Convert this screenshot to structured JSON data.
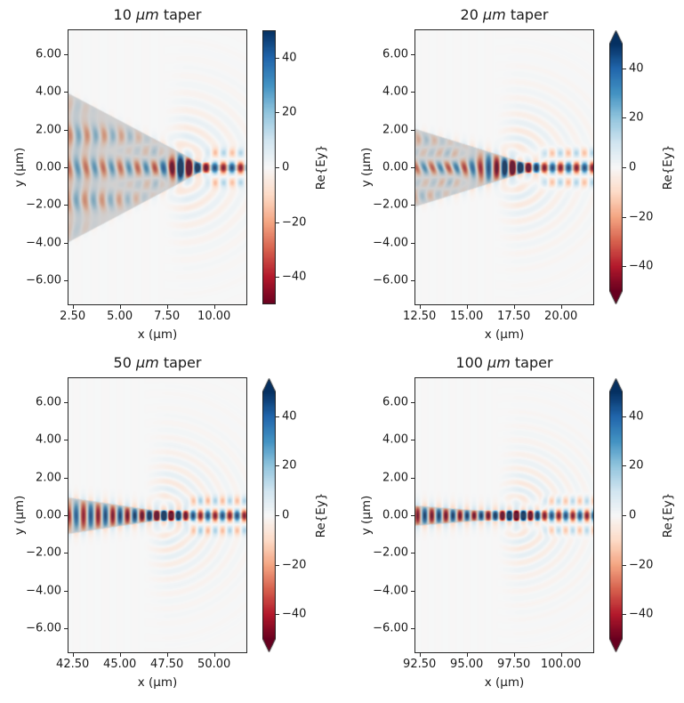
{
  "figure": {
    "background": "#ffffff",
    "colormap": "RdBu",
    "colormap_anchors": [
      "#67001f",
      "#b2182b",
      "#d6604d",
      "#f4a582",
      "#fddbc7",
      "#f7f7f7",
      "#d1e5f0",
      "#92c5de",
      "#4393c3",
      "#2166ac",
      "#053061"
    ],
    "clim": {
      "vmin": -50,
      "vmax": 50
    },
    "structure_overlay_color": "#6e6e70",
    "text_color": "#1a1a1a"
  },
  "panels": [
    {
      "title_prefix": "10 ",
      "title_mu": "μm",
      "title_suffix": " taper",
      "title_text": "10 μm taper",
      "xlabel": "x (μm)",
      "ylabel": "y (μm)",
      "x_tick_labels": [
        "2.50",
        "5.00",
        "7.50",
        "10.00"
      ],
      "x_tick_values": [
        2.5,
        5,
        7.5,
        10
      ],
      "y_tick_labels": [
        "6.00",
        "4.00",
        "2.00",
        "0.00",
        "−2.00",
        "−4.00",
        "−6.00"
      ],
      "y_tick_values": [
        6,
        4,
        2,
        0,
        -2,
        -4,
        -6
      ],
      "x_range": [
        2.28,
        11.71
      ],
      "y_range": [
        -7.26,
        7.26
      ],
      "colorbar": {
        "label": "Re{Ey}",
        "tick_labels": [
          "40",
          "20",
          "0",
          "−20",
          "−40"
        ],
        "tick_values": [
          40,
          20,
          0,
          -20,
          -40
        ],
        "extend": "neither"
      },
      "field_model": {
        "tip_x": 9.7,
        "slope": 0.53,
        "out_half_width": 0.16,
        "k": 6.9,
        "q": 3.5,
        "wiggle": 0.45
      }
    },
    {
      "title_prefix": "20 ",
      "title_mu": "μm",
      "title_suffix": " taper",
      "title_text": "20 μm taper",
      "xlabel": "x (μm)",
      "ylabel": "y (μm)",
      "x_tick_labels": [
        "12.50",
        "15.00",
        "17.50",
        "20.00"
      ],
      "x_tick_values": [
        12.5,
        15,
        17.5,
        20
      ],
      "y_tick_labels": [
        "6.00",
        "4.00",
        "2.00",
        "0.00",
        "−2.00",
        "−4.00",
        "−6.00"
      ],
      "y_tick_values": [
        6,
        4,
        2,
        0,
        -2,
        -4,
        -6
      ],
      "x_range": [
        12.28,
        21.71
      ],
      "y_range": [
        -7.26,
        7.26
      ],
      "colorbar": {
        "label": "Re{Ey}",
        "tick_labels": [
          "40",
          "20",
          "0",
          "−20",
          "−40"
        ],
        "tick_values": [
          40,
          20,
          0,
          -20,
          -40
        ],
        "extend": "both"
      },
      "field_model": {
        "tip_x": 18.9,
        "slope": 0.31,
        "out_half_width": 0.16,
        "k": 7.4,
        "q": 3.9,
        "wiggle": 0.85
      }
    },
    {
      "title_prefix": "50 ",
      "title_mu": "μm",
      "title_suffix": " taper",
      "title_text": "50 μm taper",
      "xlabel": "x (μm)",
      "ylabel": "y (μm)",
      "x_tick_labels": [
        "42.50",
        "45.00",
        "47.50",
        "50.00"
      ],
      "x_tick_values": [
        42.5,
        45,
        47.5,
        50
      ],
      "y_tick_labels": [
        "6.00",
        "4.00",
        "2.00",
        "0.00",
        "−2.00",
        "−4.00",
        "−6.00"
      ],
      "y_tick_values": [
        6,
        4,
        2,
        0,
        -2,
        -4,
        -6
      ],
      "x_range": [
        42.28,
        51.71
      ],
      "y_range": [
        -7.26,
        7.26
      ],
      "colorbar": {
        "label": "Re{Ey}",
        "tick_labels": [
          "40",
          "20",
          "0",
          "−20",
          "−40"
        ],
        "tick_values": [
          40,
          20,
          0,
          -20,
          -40
        ],
        "extend": "both"
      },
      "field_model": {
        "tip_x": 48.7,
        "slope": 0.15,
        "out_half_width": 0.16,
        "k": 8.1,
        "q": 4.3,
        "wiggle": 0.5
      }
    },
    {
      "title_prefix": "100 ",
      "title_mu": "μm",
      "title_suffix": " taper",
      "title_text": "100 μm taper",
      "xlabel": "x (μm)",
      "ylabel": "y (μm)",
      "x_tick_labels": [
        "92.50",
        "95.00",
        "97.50",
        "100.00"
      ],
      "x_tick_values": [
        92.5,
        95,
        97.5,
        100
      ],
      "y_tick_labels": [
        "6.00",
        "4.00",
        "2.00",
        "0.00",
        "−2.00",
        "−4.00",
        "−6.00"
      ],
      "y_tick_values": [
        6,
        4,
        2,
        0,
        -2,
        -4,
        -6
      ],
      "x_range": [
        92.28,
        101.71
      ],
      "y_range": [
        -7.26,
        7.26
      ],
      "colorbar": {
        "label": "Re{Ey}",
        "tick_labels": [
          "40",
          "20",
          "0",
          "−20",
          "−40"
        ],
        "tick_values": [
          40,
          20,
          0,
          -20,
          -40
        ],
        "extend": "both"
      },
      "field_model": {
        "tip_x": 99.0,
        "slope": 0.08,
        "out_half_width": 0.16,
        "k": 8.4,
        "q": 4.5,
        "wiggle": 0.3
      }
    }
  ],
  "chart_data": {
    "type": "heatmap",
    "description": "2x2 grid of simulated optical field maps Re{Ey} in waveguide tapers of four lengths; diverging RdBu colormap over gray taper structure outline",
    "colormap": "RdBu",
    "value_range": [
      -50,
      50
    ],
    "panels": [
      {
        "title": "10 μm taper",
        "xlabel": "x (μm)",
        "ylabel": "y (μm)",
        "x_range": [
          2.28,
          11.71
        ],
        "y_range": [
          -7.26,
          7.26
        ],
        "x_ticks": [
          2.5,
          5,
          7.5,
          10
        ],
        "y_ticks": [
          6,
          4,
          2,
          0,
          -2,
          -4,
          -6
        ],
        "colorbar_label": "Re{Ey}",
        "colorbar_ticks": [
          40,
          20,
          0,
          -20,
          -40
        ],
        "colorbar_extend": "neither",
        "taper_tip_x_um": 9.7,
        "taper_half_width_slope": 0.53,
        "output_half_width_um": 0.16
      },
      {
        "title": "20 μm taper",
        "xlabel": "x (μm)",
        "ylabel": "y (μm)",
        "x_range": [
          12.28,
          21.71
        ],
        "y_range": [
          -7.26,
          7.26
        ],
        "x_ticks": [
          12.5,
          15,
          17.5,
          20
        ],
        "y_ticks": [
          6,
          4,
          2,
          0,
          -2,
          -4,
          -6
        ],
        "colorbar_label": "Re{Ey}",
        "colorbar_ticks": [
          40,
          20,
          0,
          -20,
          -40
        ],
        "colorbar_extend": "both",
        "taper_tip_x_um": 18.9,
        "taper_half_width_slope": 0.31,
        "output_half_width_um": 0.16
      },
      {
        "title": "50 μm taper",
        "xlabel": "x (μm)",
        "ylabel": "y (μm)",
        "x_range": [
          42.28,
          51.71
        ],
        "y_range": [
          -7.26,
          7.26
        ],
        "x_ticks": [
          42.5,
          45,
          47.5,
          50
        ],
        "y_ticks": [
          6,
          4,
          2,
          0,
          -2,
          -4,
          -6
        ],
        "colorbar_label": "Re{Ey}",
        "colorbar_ticks": [
          40,
          20,
          0,
          -20,
          -40
        ],
        "colorbar_extend": "both",
        "taper_tip_x_um": 48.7,
        "taper_half_width_slope": 0.15,
        "output_half_width_um": 0.16
      },
      {
        "title": "100 μm taper",
        "xlabel": "x (μm)",
        "ylabel": "y (μm)",
        "x_range": [
          92.28,
          101.71
        ],
        "y_range": [
          -7.26,
          7.26
        ],
        "x_ticks": [
          92.5,
          95,
          97.5,
          100
        ],
        "y_ticks": [
          6,
          4,
          2,
          0,
          -2,
          -4,
          -6
        ],
        "colorbar_label": "Re{Ey}",
        "colorbar_ticks": [
          40,
          20,
          0,
          -20,
          -40
        ],
        "colorbar_extend": "both",
        "taper_tip_x_um": 99.0,
        "taper_half_width_slope": 0.08,
        "output_half_width_um": 0.16
      }
    ]
  }
}
